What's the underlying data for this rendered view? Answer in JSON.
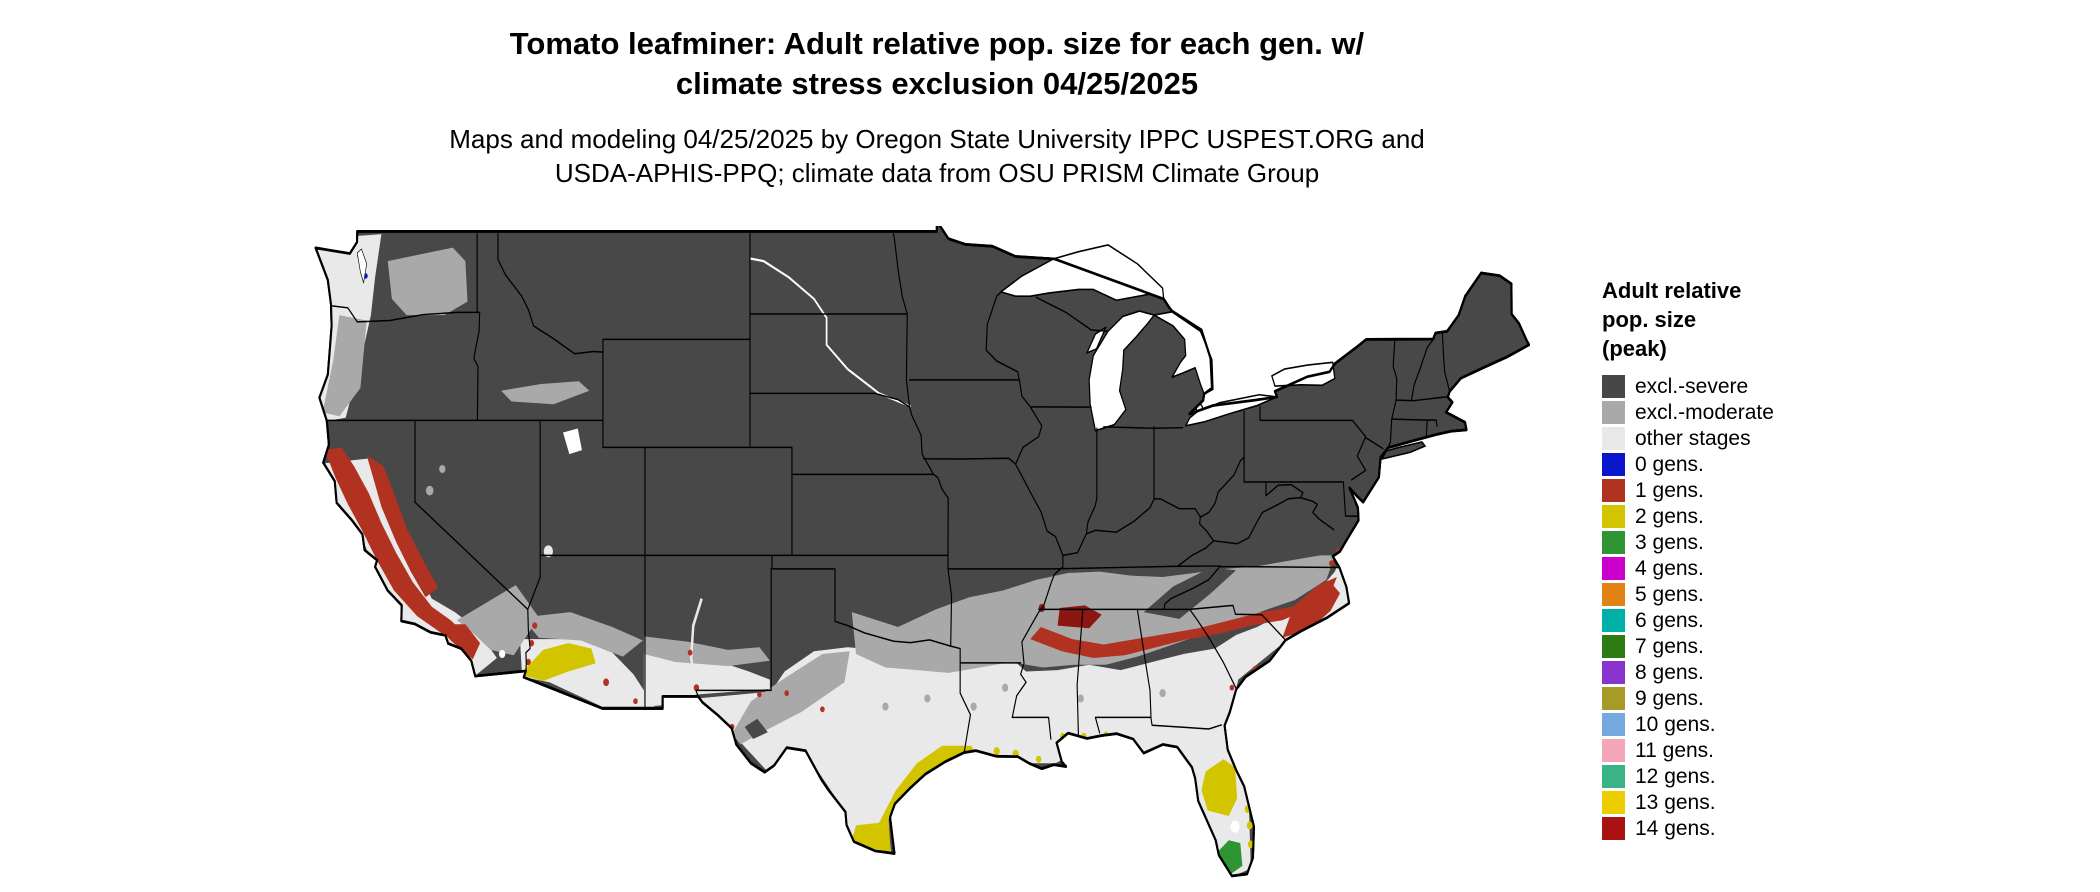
{
  "page": {
    "background": "#ffffff"
  },
  "header": {
    "title_lines": [
      "Tomato leafminer: Adult relative pop. size for each gen. w/",
      "climate stress exclusion 04/25/2025"
    ],
    "subtitle_lines": [
      "Maps and modeling 04/25/2025 by Oregon State University IPPC USPEST.ORG and",
      "USDA-APHIS-PPQ; climate data from OSU PRISM Climate Group"
    ]
  },
  "legend": {
    "title_lines": [
      "Adult relative",
      "pop. size",
      "(peak)"
    ],
    "items": [
      {
        "label": "excl.-severe",
        "color": "#474747"
      },
      {
        "label": "excl.-moderate",
        "color": "#a9a9a9"
      },
      {
        "label": "other stages",
        "color": "#e8e8e8"
      },
      {
        "label": "0 gens.",
        "color": "#0a16cc"
      },
      {
        "label": "1 gens.",
        "color": "#b23222"
      },
      {
        "label": "2 gens.",
        "color": "#d2c500"
      },
      {
        "label": "3 gens.",
        "color": "#2e9434"
      },
      {
        "label": "4 gens.",
        "color": "#cc00cc"
      },
      {
        "label": "5 gens.",
        "color": "#e08214"
      },
      {
        "label": "6 gens.",
        "color": "#00b0a8"
      },
      {
        "label": "7 gens.",
        "color": "#2f7a12"
      },
      {
        "label": "8 gens.",
        "color": "#8833cc"
      },
      {
        "label": "9 gens.",
        "color": "#a89b25"
      },
      {
        "label": "10 gens.",
        "color": "#74a9e0"
      },
      {
        "label": "11 gens.",
        "color": "#f4a6b8"
      },
      {
        "label": "12 gens.",
        "color": "#3ab387"
      },
      {
        "label": "13 gens.",
        "color": "#eccd00"
      },
      {
        "label": "14 gens.",
        "color": "#aa1111"
      }
    ]
  },
  "map": {
    "fill_colors": {
      "excluded_severe": "#484848",
      "excluded_moderate": "#a9a9a9",
      "other_stages": "#e9e9e9",
      "one_generation": "#b23222",
      "two_generations": "#d2c500",
      "three_generations": "#2e9434",
      "water": "#ffffff",
      "border": "#000000"
    }
  }
}
